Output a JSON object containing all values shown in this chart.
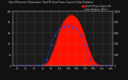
{
  "title": "Solar PV/Inverter Performance Total PV Panel Power Output & Solar Radiation",
  "bg_color": "#111111",
  "plot_bg_color": "#1a1a1a",
  "grid_color": "#888888",
  "pv_color": "#ff1100",
  "radiation_color": "#2244ff",
  "y_left_max": 10000,
  "y_right_max": 1000,
  "pv_data": [
    0,
    0,
    0,
    0,
    0,
    0,
    0,
    0,
    0,
    0,
    0,
    0,
    0,
    0,
    50,
    200,
    500,
    1000,
    1800,
    2800,
    4000,
    5200,
    6400,
    7400,
    8200,
    8700,
    9100,
    9300,
    9300,
    9100,
    8700,
    8200,
    7400,
    6400,
    5200,
    4000,
    2800,
    1800,
    1000,
    500,
    200,
    50,
    0,
    0,
    0,
    0,
    0,
    0
  ],
  "rad_data": [
    0,
    0,
    0,
    0,
    0,
    0,
    0,
    0,
    0,
    0,
    0,
    0,
    0,
    0,
    15,
    50,
    120,
    250,
    380,
    480,
    560,
    620,
    670,
    700,
    720,
    730,
    730,
    720,
    710,
    700,
    670,
    620,
    560,
    480,
    380,
    250,
    120,
    50,
    15,
    0,
    0,
    0,
    0,
    0,
    0,
    0,
    0,
    0
  ],
  "x_labels": [
    "1h",
    "3h",
    "5h",
    "7h",
    "9h",
    "11h",
    "13h",
    "15h",
    "17h",
    "19h",
    "21h",
    "23h"
  ],
  "x_ticks": [
    2,
    6,
    10,
    14,
    18,
    22,
    26,
    30,
    34,
    38,
    42,
    46
  ],
  "legend_pv_label": "Total PV Power Output (W)",
  "legend_rad_label": "Solar Radiation (W/m²)",
  "right_ticks": [
    0,
    200,
    400,
    600,
    800,
    1000
  ],
  "right_labels": [
    "0",
    "200",
    "400",
    "600",
    "800",
    "1000"
  ],
  "left_ticks": [
    0,
    2000,
    4000,
    6000,
    8000,
    10000
  ],
  "left_labels": [
    "0",
    "2k",
    "4k",
    "6k",
    "8k",
    "10k"
  ]
}
